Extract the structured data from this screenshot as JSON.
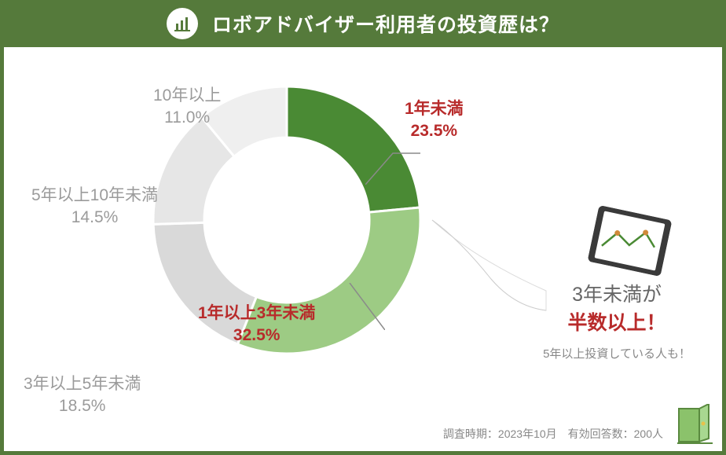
{
  "header": {
    "title": "ロボアドバイザー利用者の投資歴は？",
    "bg_color": "#557a3b",
    "text_color": "#ffffff"
  },
  "chart": {
    "type": "donut",
    "outer_r": 170,
    "inner_r": 105,
    "background_color": "#ffffff",
    "slices": [
      {
        "label": "1年未満",
        "value": 23.5,
        "color": "#4a8a34",
        "label_color": "#b82b2b"
      },
      {
        "label": "1年以上3年未満",
        "value": 32.5,
        "color": "#9dcb84",
        "label_color": "#b82b2b"
      },
      {
        "label": "3年以上5年未満",
        "value": 18.5,
        "color": "#d9d9d9",
        "label_color": "#9b9b9b"
      },
      {
        "label": "5年以上10年未満",
        "value": 14.5,
        "color": "#e6e6e6",
        "label_color": "#9b9b9b"
      },
      {
        "label": "10年以上",
        "value": 11.0,
        "color": "#efefef",
        "label_color": "#9b9b9b"
      }
    ],
    "label_fontsize": 21,
    "gap_color": "#ffffff",
    "gap_width": 3
  },
  "callout": {
    "line1": "3年未満が",
    "line2": "半数以上！",
    "sub": "5年以上投資している人も！",
    "line1_color": "#666666",
    "line2_color": "#b82b2b",
    "sub_color": "#888888"
  },
  "footer": {
    "text": "調査時期：2023年10月　有効回答数：200人",
    "color": "#888888"
  },
  "tablet": {
    "frame_color": "#3a3a3a",
    "screen_color": "#ffffff",
    "line_color": "#4a8a34",
    "point_color": "#d08a3a"
  },
  "logo": {
    "door_color": "#8bc26b",
    "stroke_color": "#5a8a3f",
    "knob_color": "#e8c24a"
  }
}
